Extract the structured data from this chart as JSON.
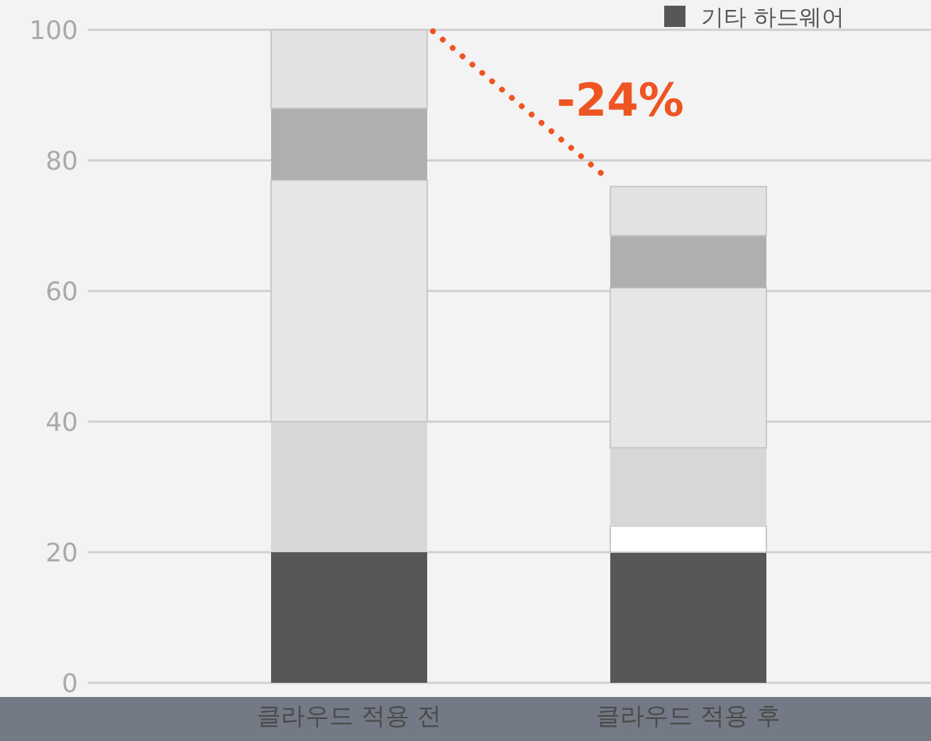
{
  "chart_data": {
    "type": "bar",
    "stacked": true,
    "categories": [
      "클라우드 적용 전",
      "클라우드 적용 후"
    ],
    "series": [
      {
        "name": "기타 하드웨어",
        "color": "#575757",
        "values": [
          20,
          20
        ]
      },
      {
        "color": "#ffffff",
        "values": [
          0,
          4
        ]
      },
      {
        "color": "#d7d7d7",
        "values": [
          20,
          12
        ]
      },
      {
        "color": "#e6e6e6",
        "values": [
          37,
          24.5
        ]
      },
      {
        "color": "#afafaf",
        "values": [
          11,
          8
        ]
      },
      {
        "color": "#e2e2e2",
        "values": [
          12,
          7.5
        ]
      }
    ],
    "ylim": [
      0,
      100
    ],
    "yticks": [
      0,
      20,
      40,
      60,
      80,
      100
    ],
    "grid": "y",
    "legend": "top right",
    "annotations": [
      {
        "text": "-24%",
        "x": "클라우드 적용 후",
        "y": 76
      }
    ]
  }
}
